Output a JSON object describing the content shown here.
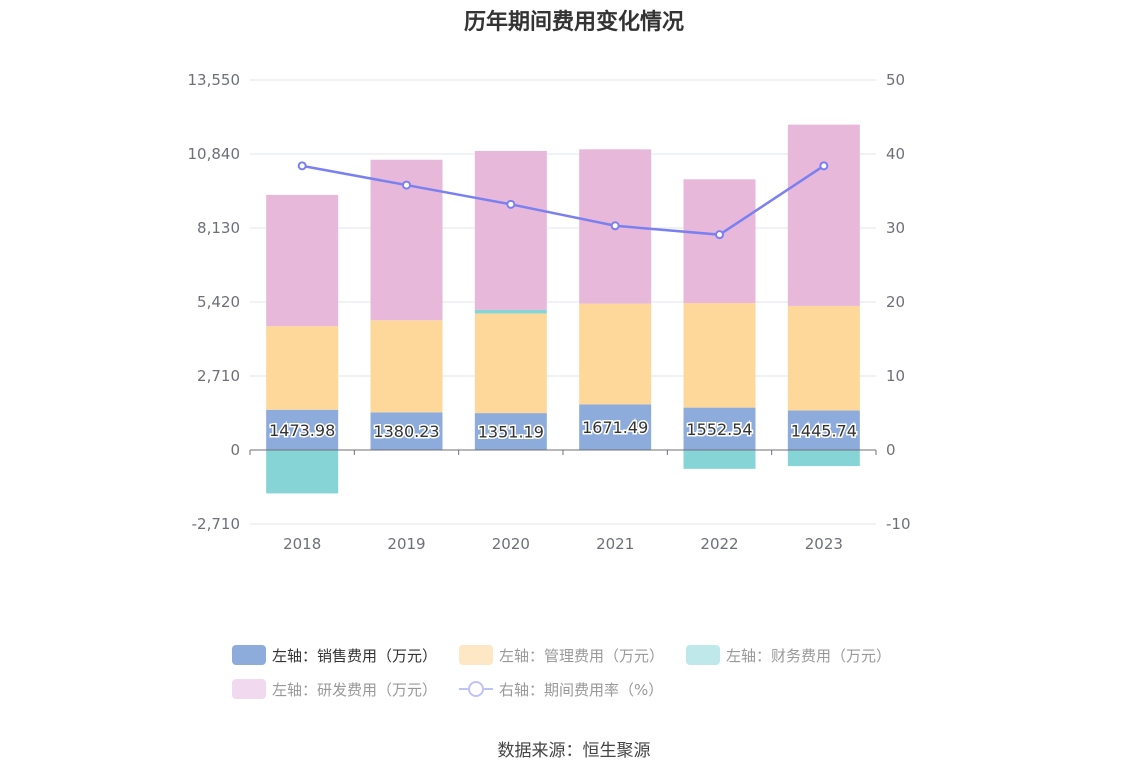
{
  "title": "历年期间费用变化情况",
  "source": "数据来源：恒生聚源",
  "legend": [
    {
      "label": "左轴：销售费用（万元）",
      "color": "#8eacdb",
      "type": "bar",
      "active": true
    },
    {
      "label": "左轴：管理费用（万元）",
      "color": "#fde7c4",
      "type": "bar",
      "active": false
    },
    {
      "label": "左轴：财务费用（万元）",
      "color": "#bfe8ea",
      "type": "bar",
      "active": false
    },
    {
      "label": "左轴：研发费用（万元）",
      "color": "#f1d9ef",
      "type": "bar",
      "active": false
    },
    {
      "label": "右轴：期间费用率（%）",
      "color": "#bfc2f7",
      "type": "line",
      "active": false
    }
  ],
  "chart_data": {
    "type": "bar",
    "categories": [
      "2018",
      "2019",
      "2020",
      "2021",
      "2022",
      "2023"
    ],
    "series": [
      {
        "name": "左轴：销售费用（万元）",
        "axis": "left",
        "color": "#8eacdb",
        "values": [
          1473.98,
          1380.23,
          1351.19,
          1671.49,
          1552.54,
          1445.74
        ]
      },
      {
        "name": "左轴：管理费用（万元）",
        "axis": "left",
        "color": "#fdd89a",
        "values": [
          3060,
          3370,
          3650,
          3690,
          3830,
          3830
        ]
      },
      {
        "name": "左轴：财务费用（万元）",
        "axis": "left",
        "color": "#87d4d6",
        "values": [
          -1590,
          0,
          130,
          0,
          -690,
          -590
        ]
      },
      {
        "name": "左轴：研发费用（万元）",
        "axis": "left",
        "color": "#e7b8da",
        "values": [
          4810,
          5880,
          5820,
          5650,
          4530,
          6640
        ]
      },
      {
        "name": "右轴：期间费用率（%）",
        "axis": "right",
        "color": "#7a80f0",
        "type": "line",
        "values": [
          38.4,
          35.8,
          33.2,
          30.3,
          29.1,
          38.4
        ]
      }
    ],
    "left_axis": {
      "ticks": [
        "13,550",
        "10,840",
        "8,130",
        "5,420",
        "2,710",
        "0",
        "-2,710"
      ],
      "ylim": [
        -2710,
        13550
      ]
    },
    "right_axis": {
      "ticks": [
        "50",
        "40",
        "30",
        "20",
        "10",
        "0",
        "-10"
      ],
      "ylim": [
        -10,
        50
      ]
    },
    "data_labels": [
      "1473.98",
      "1380.23",
      "1351.19",
      "1671.49",
      "1552.54",
      "1445.74"
    ]
  }
}
